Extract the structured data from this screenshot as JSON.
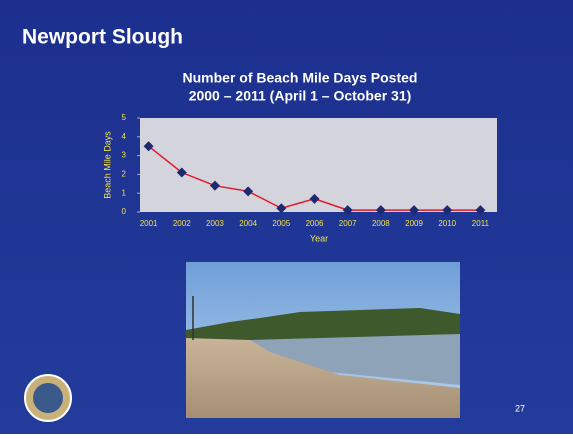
{
  "slide": {
    "title": "Newport Slough",
    "page_number": "27"
  },
  "chart_data": {
    "type": "line",
    "title": "Number of Beach Mile Days Posted",
    "subtitle": "2000 – 2011 (April 1 – October 31)",
    "x_label": "Year",
    "y_label": "Beach Mile Days",
    "categories": [
      "2001",
      "2002",
      "2003",
      "2004",
      "2005",
      "2006",
      "2007",
      "2008",
      "2009",
      "2010",
      "2011"
    ],
    "series": [
      {
        "color": "#e3172b",
        "marker_color": "#1e2a70",
        "values": [
          3.5,
          2.1,
          1.4,
          1.1,
          0.2,
          0.7,
          0.1,
          0.1,
          0.1,
          0.1,
          0.1
        ]
      }
    ],
    "ylim": [
      0,
      5
    ],
    "yticks": [
      0,
      1,
      2,
      3,
      4,
      5
    ],
    "grid": false
  }
}
